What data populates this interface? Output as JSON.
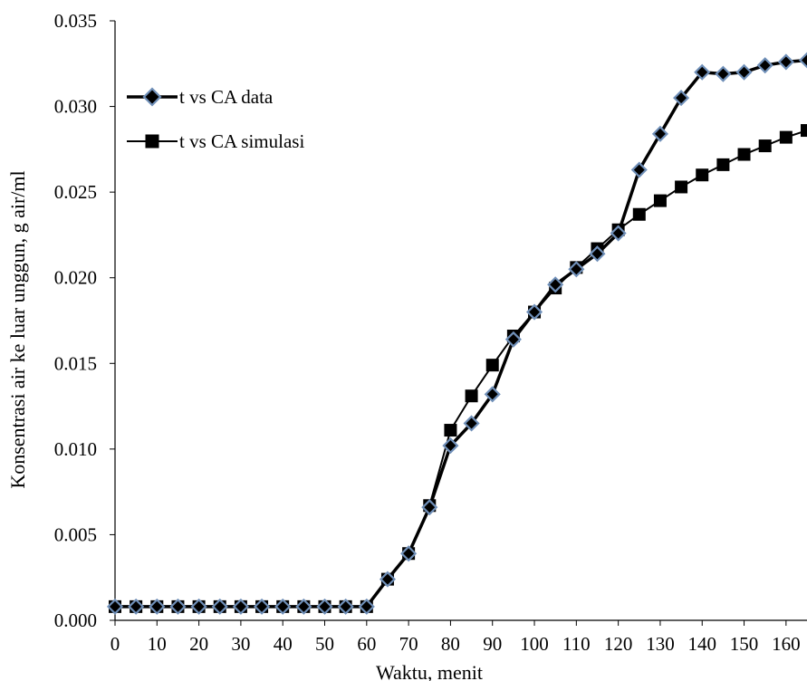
{
  "chart_data": {
    "type": "line",
    "title": "",
    "xlabel": "Waktu, menit",
    "ylabel": "Konsentrasi air ke luar unggun, g air/ml",
    "xlim": [
      0,
      165
    ],
    "ylim": [
      0,
      0.035
    ],
    "x_ticks": [
      "0",
      "10",
      "20",
      "30",
      "40",
      "50",
      "60",
      "70",
      "80",
      "90",
      "100",
      "110",
      "120",
      "130",
      "140",
      "150",
      "160"
    ],
    "y_ticks": [
      "0.000",
      "0.005",
      "0.010",
      "0.015",
      "0.020",
      "0.025",
      "0.030",
      "0.035"
    ],
    "grid": false,
    "legend_position": "top-left",
    "x": [
      0,
      5,
      10,
      15,
      20,
      25,
      30,
      35,
      40,
      45,
      50,
      55,
      60,
      65,
      70,
      75,
      80,
      85,
      90,
      95,
      100,
      105,
      110,
      115,
      120,
      125,
      130,
      135,
      140,
      145,
      150,
      155,
      160,
      165
    ],
    "series": [
      {
        "name": "t vs CA data",
        "marker": "diamond",
        "line_color": "#000000",
        "marker_fill": "#000000",
        "marker_edge": "#6f8fb8",
        "values": [
          0.0008,
          0.0008,
          0.0008,
          0.0008,
          0.0008,
          0.0008,
          0.0008,
          0.0008,
          0.0008,
          0.0008,
          0.0008,
          0.0008,
          0.0008,
          0.0024,
          0.0039,
          0.0066,
          0.0102,
          0.0115,
          0.0132,
          0.0164,
          0.018,
          0.0196,
          0.0205,
          0.0214,
          0.0226,
          0.0263,
          0.0284,
          0.0305,
          0.032,
          0.0319,
          0.032,
          0.0324,
          0.0326,
          0.0327
        ]
      },
      {
        "name": "t vs CA simulasi",
        "marker": "square",
        "line_color": "#000000",
        "marker_fill": "#000000",
        "marker_edge": "#000000",
        "values": [
          0.0008,
          0.0008,
          0.0008,
          0.0008,
          0.0008,
          0.0008,
          0.0008,
          0.0008,
          0.0008,
          0.0008,
          0.0008,
          0.0008,
          0.0008,
          0.0024,
          0.0039,
          0.0067,
          0.0111,
          0.0131,
          0.0149,
          0.0166,
          0.018,
          0.0194,
          0.0206,
          0.0217,
          0.0228,
          0.0237,
          0.0245,
          0.0253,
          0.026,
          0.0266,
          0.0272,
          0.0277,
          0.0282,
          0.0286
        ]
      }
    ]
  }
}
